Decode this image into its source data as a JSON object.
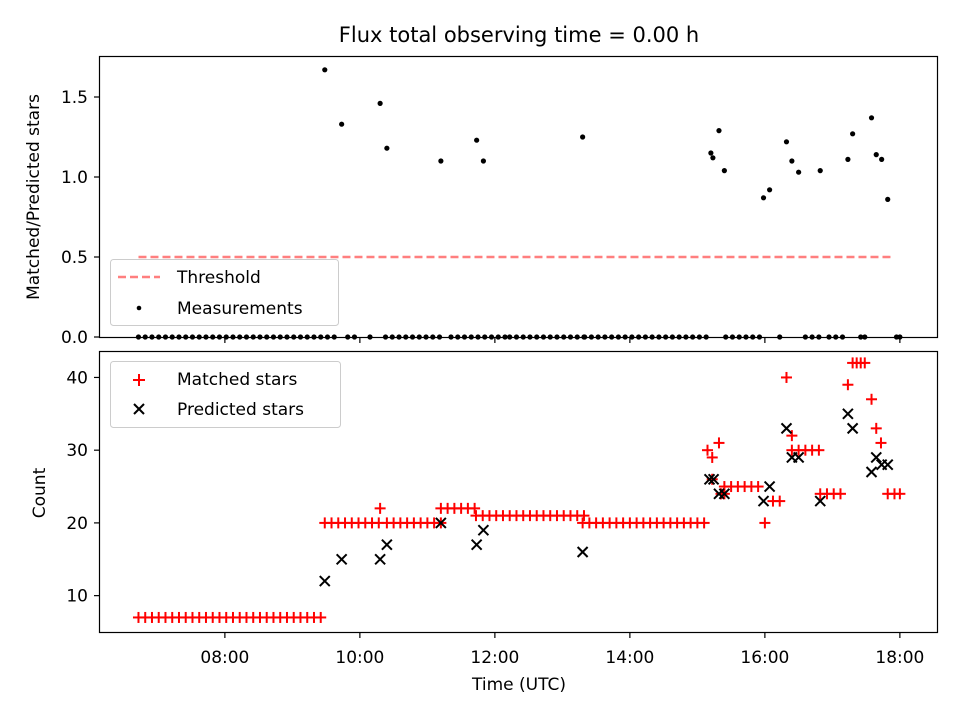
{
  "chart_data": [
    {
      "type": "scatter",
      "title": "Flux total observing time = 0.00 h",
      "ylabel": "Matched/Predicted stars",
      "xlabel": "",
      "xlim_hours": [
        6.15,
        18.55
      ],
      "ylim": [
        0,
        1.75
      ],
      "yticks": [
        0.0,
        0.5,
        1.0,
        1.5
      ],
      "ytick_labels": [
        "0.0",
        "0.5",
        "1.0",
        "1.5"
      ],
      "grid": false,
      "legend_position": "lower-left",
      "threshold": {
        "name": "Threshold",
        "value": 0.5,
        "x_range": [
          6.72,
          17.92
        ],
        "color": "#ff7f7f"
      },
      "measurements": {
        "name": "Measurements",
        "color": "#000000",
        "nonzero": [
          [
            9.48,
            1.67
          ],
          [
            9.73,
            1.33
          ],
          [
            10.3,
            1.46
          ],
          [
            10.4,
            1.18
          ],
          [
            11.2,
            1.1
          ],
          [
            11.73,
            1.23
          ],
          [
            11.83,
            1.1
          ],
          [
            13.3,
            1.25
          ],
          [
            15.2,
            1.15
          ],
          [
            15.23,
            1.12
          ],
          [
            15.32,
            1.29
          ],
          [
            15.4,
            1.04
          ],
          [
            15.98,
            0.87
          ],
          [
            16.07,
            0.92
          ],
          [
            16.32,
            1.22
          ],
          [
            16.4,
            1.1
          ],
          [
            16.5,
            1.03
          ],
          [
            16.82,
            1.04
          ],
          [
            17.23,
            1.11
          ],
          [
            17.3,
            1.27
          ],
          [
            17.58,
            1.37
          ],
          [
            17.65,
            1.14
          ],
          [
            17.73,
            1.11
          ],
          [
            17.82,
            0.86
          ]
        ],
        "zero_x_segments": [
          [
            6.72,
            9.4,
            0.1
          ],
          [
            10.38,
            11.2,
            0.1
          ],
          [
            11.35,
            11.75,
            0.1
          ],
          [
            11.85,
            12.2,
            0.1
          ],
          [
            12.22,
            13.3,
            0.1
          ],
          [
            13.33,
            15.1,
            0.1
          ],
          [
            15.42,
            15.95,
            0.1
          ],
          [
            16.6,
            16.82,
            0.1
          ]
        ],
        "zero_x": [
          9.52,
          9.62,
          9.82,
          9.92,
          10.15,
          16.22,
          16.95,
          17.05,
          17.15,
          17.42,
          17.48,
          17.95,
          18.0
        ]
      }
    },
    {
      "type": "scatter",
      "title": "",
      "ylabel": "Count",
      "xlabel": "Time (UTC)",
      "xlim_hours": [
        6.15,
        18.55
      ],
      "ylim": [
        5.0,
        43.5
      ],
      "yticks": [
        10,
        20,
        30,
        40
      ],
      "ytick_labels": [
        "10",
        "20",
        "30",
        "40"
      ],
      "xticks_hours": [
        8,
        10,
        12,
        14,
        16,
        18
      ],
      "xtick_labels": [
        "08:00",
        "10:00",
        "12:00",
        "14:00",
        "16:00",
        "18:00"
      ],
      "grid": false,
      "legend_position": "top-left",
      "series": [
        {
          "name": "Matched stars",
          "marker": "plus",
          "color": "#ff0000",
          "runs": [
            [
              6.72,
              9.42,
              7,
              0.1
            ],
            [
              9.48,
              10.33,
              20,
              0.1
            ],
            [
              10.4,
              11.15,
              20,
              0.1
            ],
            [
              11.2,
              11.7,
              22,
              0.1
            ],
            [
              11.72,
              13.3,
              21,
              0.1
            ],
            [
              13.3,
              15.05,
              20,
              0.1
            ],
            [
              15.4,
              15.95,
              25,
              0.1
            ],
            [
              16.4,
              16.75,
              30,
              0.1
            ],
            [
              16.82,
              17.15,
              24,
              0.1
            ],
            [
              17.3,
              17.48,
              42,
              0.06
            ]
          ],
          "points": [
            [
              10.3,
              22
            ],
            [
              15.15,
              30
            ],
            [
              15.22,
              29
            ],
            [
              15.22,
              26
            ],
            [
              15.32,
              31
            ],
            [
              15.35,
              24
            ],
            [
              15.4,
              24
            ],
            [
              16.0,
              20
            ],
            [
              16.12,
              23
            ],
            [
              16.22,
              23
            ],
            [
              16.32,
              40
            ],
            [
              16.4,
              32
            ],
            [
              17.23,
              39
            ],
            [
              17.58,
              37
            ],
            [
              17.65,
              33
            ],
            [
              17.72,
              31
            ],
            [
              17.82,
              24
            ],
            [
              17.92,
              24
            ],
            [
              18.0,
              24
            ]
          ]
        },
        {
          "name": "Predicted stars",
          "marker": "x",
          "color": "#000000",
          "points": [
            [
              9.48,
              12
            ],
            [
              9.73,
              15
            ],
            [
              10.3,
              15
            ],
            [
              10.4,
              17
            ],
            [
              11.2,
              20
            ],
            [
              11.73,
              17
            ],
            [
              11.83,
              19
            ],
            [
              13.3,
              16
            ],
            [
              15.18,
              26
            ],
            [
              15.24,
              26
            ],
            [
              15.32,
              24
            ],
            [
              15.4,
              24
            ],
            [
              15.98,
              23
            ],
            [
              16.07,
              25
            ],
            [
              16.32,
              33
            ],
            [
              16.4,
              29
            ],
            [
              16.5,
              29
            ],
            [
              16.82,
              23
            ],
            [
              17.23,
              35
            ],
            [
              17.3,
              33
            ],
            [
              17.58,
              27
            ],
            [
              17.65,
              29
            ],
            [
              17.73,
              28
            ],
            [
              17.82,
              28
            ]
          ]
        }
      ]
    }
  ]
}
